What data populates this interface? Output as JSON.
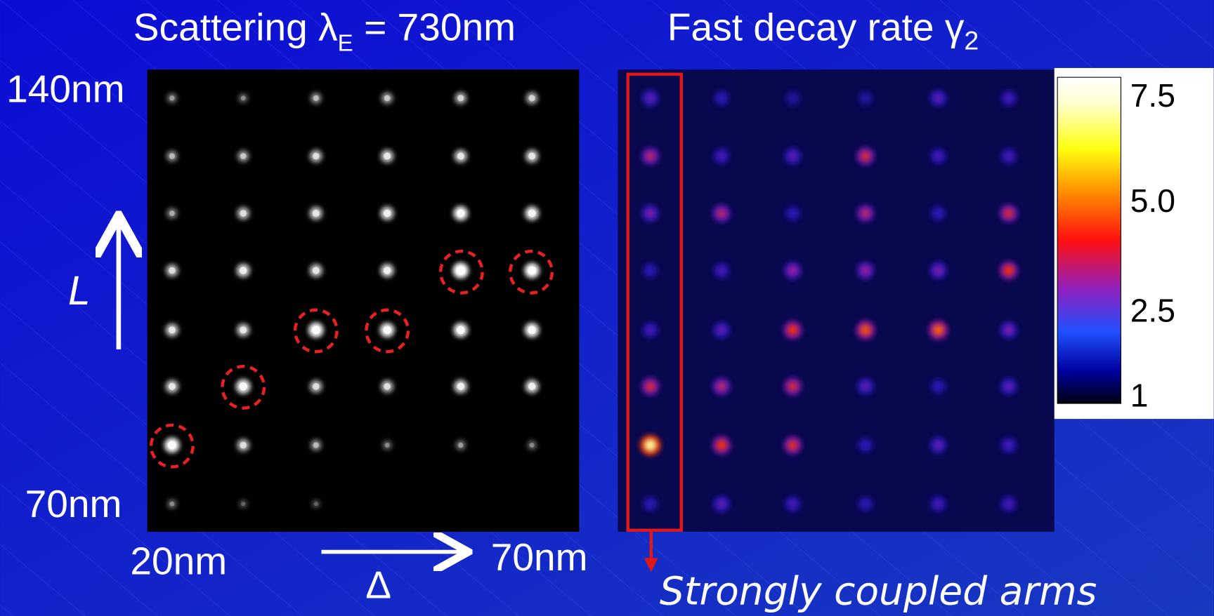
{
  "left_panel": {
    "title": {
      "main": "Scattering λ",
      "subscript": "E",
      "rest": "= 730nm"
    },
    "y_top_label": "140nm",
    "y_bottom_label": "70nm",
    "x_left_label": "20nm",
    "x_right_label": "70nm",
    "y_axis_symbol": "L",
    "x_axis_symbol": "Δ"
  },
  "right_panel": {
    "title": {
      "main": "Fast decay rate γ",
      "subscript": "2"
    },
    "colorbar_ticks": [
      "7.5",
      "5.0",
      "2.5",
      "1"
    ],
    "annotation": "Strongly coupled arms"
  }
}
